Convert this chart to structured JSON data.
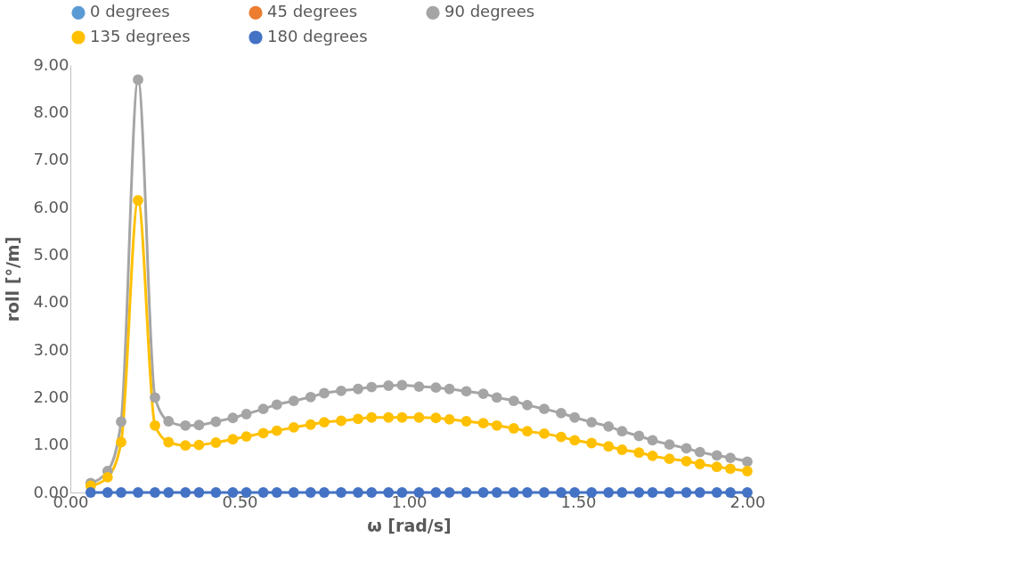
{
  "chart_data": {
    "type": "line",
    "xlabel": "ω [rad/s]",
    "ylabel": "roll [°/m]",
    "x": [
      0.06,
      0.11,
      0.15,
      0.2,
      0.25,
      0.29,
      0.34,
      0.38,
      0.43,
      0.48,
      0.52,
      0.57,
      0.61,
      0.66,
      0.71,
      0.75,
      0.8,
      0.85,
      0.89,
      0.94,
      0.98,
      1.03,
      1.08,
      1.12,
      1.17,
      1.22,
      1.26,
      1.31,
      1.35,
      1.4,
      1.45,
      1.49,
      1.54,
      1.59,
      1.63,
      1.68,
      1.72,
      1.77,
      1.82,
      1.86,
      1.91,
      1.95,
      2.0
    ],
    "series": [
      {
        "name": "0 degrees",
        "color": "#5b9bd5",
        "values": [
          null,
          null,
          null,
          null,
          null,
          null,
          null,
          null,
          null,
          null,
          null,
          null,
          null,
          null,
          null,
          null,
          null,
          null,
          null,
          null,
          null,
          null,
          null,
          null,
          null,
          null,
          null,
          null,
          null,
          null,
          null,
          null,
          null,
          null,
          null,
          null,
          null,
          null,
          null,
          null,
          null,
          null,
          null
        ]
      },
      {
        "name": "45 degrees",
        "color": "#ed7d31",
        "values": [
          null,
          null,
          null,
          null,
          null,
          null,
          null,
          null,
          null,
          null,
          null,
          null,
          null,
          null,
          null,
          null,
          null,
          null,
          null,
          null,
          null,
          null,
          null,
          null,
          null,
          null,
          null,
          null,
          null,
          null,
          null,
          null,
          null,
          null,
          null,
          null,
          null,
          null,
          null,
          null,
          null,
          null,
          null
        ]
      },
      {
        "name": "90 degrees",
        "color": "#a5a5a5",
        "values": [
          0.2,
          0.45,
          1.49,
          8.69,
          2.0,
          1.5,
          1.41,
          1.42,
          1.49,
          1.57,
          1.65,
          1.76,
          1.85,
          1.93,
          2.01,
          2.09,
          2.14,
          2.18,
          2.22,
          2.25,
          2.26,
          2.23,
          2.21,
          2.18,
          2.13,
          2.08,
          2.0,
          1.93,
          1.84,
          1.76,
          1.67,
          1.58,
          1.48,
          1.39,
          1.29,
          1.19,
          1.1,
          1.01,
          0.93,
          0.85,
          0.78,
          0.73,
          0.65
        ]
      },
      {
        "name": "135 degrees",
        "color": "#ffc000",
        "values": [
          0.14,
          0.32,
          1.06,
          6.15,
          1.41,
          1.06,
          0.99,
          1.0,
          1.05,
          1.12,
          1.18,
          1.25,
          1.3,
          1.37,
          1.43,
          1.48,
          1.51,
          1.55,
          1.58,
          1.58,
          1.58,
          1.58,
          1.57,
          1.54,
          1.5,
          1.46,
          1.41,
          1.35,
          1.29,
          1.24,
          1.17,
          1.1,
          1.04,
          0.97,
          0.9,
          0.84,
          0.77,
          0.71,
          0.66,
          0.6,
          0.54,
          0.5,
          0.45
        ]
      },
      {
        "name": "180 degrees",
        "color": "#4472c4",
        "values": [
          0,
          0,
          0,
          0,
          0,
          0,
          0,
          0,
          0,
          0,
          0,
          0,
          0,
          0,
          0,
          0,
          0,
          0,
          0,
          0,
          0,
          0,
          0,
          0,
          0,
          0,
          0,
          0,
          0,
          0,
          0,
          0,
          0,
          0,
          0,
          0,
          0,
          0,
          0,
          0,
          0,
          0,
          0
        ]
      }
    ],
    "xlim": [
      0,
      2
    ],
    "xticks": [
      {
        "value": 0,
        "label": "0.00"
      },
      {
        "value": 0.5,
        "label": "0.50"
      },
      {
        "value": 1,
        "label": "1.00"
      },
      {
        "value": 1.5,
        "label": "1.50"
      },
      {
        "value": 2,
        "label": "2.00"
      }
    ],
    "ylim": [
      0,
      9
    ],
    "yticks": [
      {
        "value": 0,
        "label": "0.00"
      },
      {
        "value": 1,
        "label": "1.00"
      },
      {
        "value": 2,
        "label": "2.00"
      },
      {
        "value": 3,
        "label": "3.00"
      },
      {
        "value": 4,
        "label": "4.00"
      },
      {
        "value": 5,
        "label": "5.00"
      },
      {
        "value": 6,
        "label": "6.00"
      },
      {
        "value": 7,
        "label": "7.00"
      },
      {
        "value": 8,
        "label": "8.00"
      },
      {
        "value": 9,
        "label": "9.00"
      }
    ],
    "grid": false,
    "legend": "top",
    "marker": "circle",
    "line_style": "solid"
  }
}
